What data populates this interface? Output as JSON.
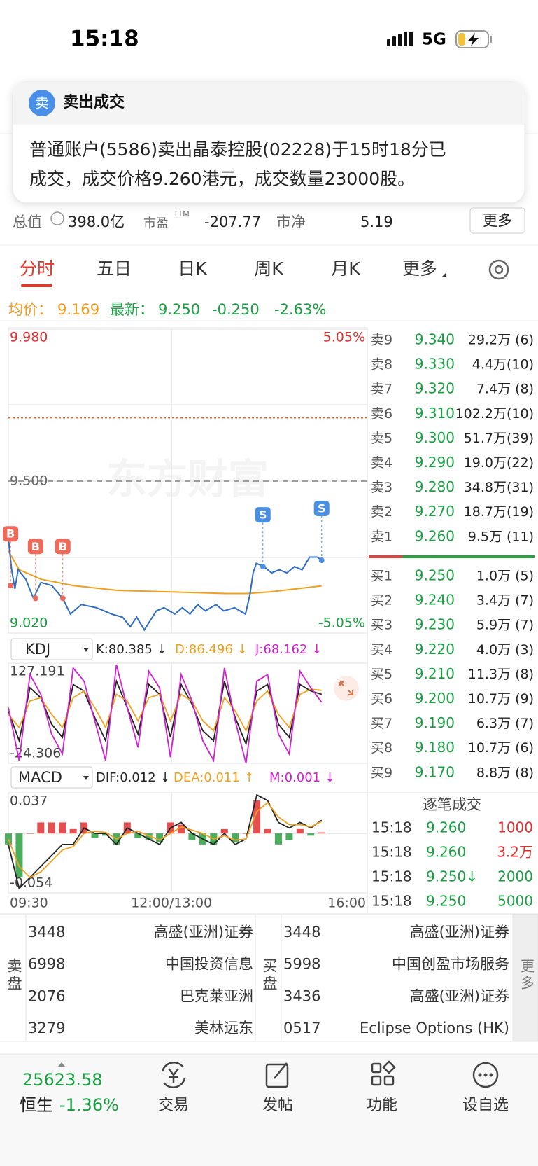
{
  "status_bar": {
    "time": "15:18",
    "network": "5G"
  },
  "notification": {
    "icon": "卖",
    "title": "卖出成交",
    "body": [
      "普通账户(5586)卖出晶泰控股(02228)于15时18分已",
      "成交，成交价格9.260港元，成交数量23000股。"
    ]
  },
  "stats": {
    "market_cap_label": "总值",
    "market_cap": "398.0亿",
    "pe_label": "市盈",
    "pe_suffix": "TTM",
    "pe": "-207.77",
    "pb_label": "市净",
    "pb": "5.19",
    "more": "更多"
  },
  "tabs": [
    "分时",
    "五日",
    "日K",
    "周K",
    "月K",
    "更多"
  ],
  "quote": {
    "avg_label": "均价：",
    "avg": "9.169",
    "last_label": "最新：",
    "last": "9.250",
    "change": "-0.250",
    "change_pct": "-2.63%"
  },
  "watermark": "东方财富",
  "intraday": {
    "ylim": [
      9.02,
      9.98
    ],
    "yticks": [
      {
        "value": 9.98,
        "label": "9.980"
      },
      {
        "value": 9.5,
        "label": "9.500"
      },
      {
        "value": 9.02,
        "label": "9.020"
      }
    ],
    "y2lim": [
      -5.05,
      5.05
    ],
    "y2ticks": [
      {
        "value": 5.05,
        "label": "5.05%"
      },
      {
        "value": -5.05,
        "label": "-5.05%"
      }
    ],
    "xlim": [
      0,
      330
    ],
    "xticks": [
      {
        "value": 0,
        "label": "09:30"
      },
      {
        "value": 150,
        "label": "12:00/13:00"
      },
      {
        "value": 330,
        "label": "16:00"
      }
    ],
    "prev_close": 9.5,
    "alert_line": 9.7,
    "price": {
      "color": "#2e6cc4",
      "x": [
        0,
        3,
        6,
        9,
        16,
        23,
        30,
        40,
        50,
        57,
        67,
        81,
        95,
        105,
        112,
        118,
        125,
        136,
        143,
        153,
        160,
        167,
        174,
        181,
        191,
        198,
        208,
        218,
        222,
        225,
        228,
        235,
        242,
        249,
        256,
        263,
        270,
        277,
        284,
        288
      ],
      "values": [
        9.32,
        9.22,
        9.16,
        9.22,
        9.19,
        9.13,
        9.18,
        9.17,
        9.13,
        9.08,
        9.11,
        9.1,
        9.08,
        9.07,
        9.04,
        9.07,
        9.03,
        9.09,
        9.1,
        9.08,
        9.1,
        9.08,
        9.11,
        9.09,
        9.11,
        9.09,
        9.1,
        9.08,
        9.14,
        9.21,
        9.24,
        9.23,
        9.21,
        9.22,
        9.21,
        9.23,
        9.22,
        9.26,
        9.26,
        9.25
      ]
    },
    "avg": {
      "color": "#f0a020",
      "x": [
        0,
        10,
        30,
        60,
        100,
        150,
        200,
        220,
        240,
        288
      ],
      "values": [
        9.28,
        9.22,
        9.19,
        9.17,
        9.155,
        9.15,
        9.145,
        9.145,
        9.15,
        9.169
      ]
    },
    "markers": [
      {
        "label": "B",
        "x": 2,
        "value": 9.17
      },
      {
        "label": "B",
        "x": 25,
        "value": 9.13
      },
      {
        "label": "B",
        "x": 50,
        "value": 9.13
      },
      {
        "label": "S",
        "x": 234,
        "value": 9.23
      },
      {
        "label": "S",
        "x": 288,
        "value": 9.25
      }
    ]
  },
  "kdj": {
    "name": "KDJ",
    "labels": [
      "K:80.385 ↓",
      "D:86.496 ↓",
      "J:68.162 ↓"
    ],
    "ylim": [
      -24.306,
      127.191
    ],
    "yticks": [
      {
        "value": 127.191,
        "label": "127.191"
      },
      {
        "value": -24.306,
        "label": "-24.306"
      }
    ],
    "series": [
      {
        "name": "K",
        "color": "#222222",
        "values": [
          55,
          10,
          90,
          75,
          35,
          15,
          95,
          85,
          45,
          10,
          100,
          60,
          20,
          95,
          80,
          15,
          95,
          65,
          25,
          10,
          100,
          45,
          5,
          85,
          95,
          35,
          15,
          95,
          85,
          80
        ]
      },
      {
        "name": "D",
        "color": "#f0a020",
        "values": [
          50,
          30,
          70,
          75,
          50,
          30,
          75,
          85,
          60,
          30,
          80,
          70,
          40,
          75,
          80,
          40,
          80,
          70,
          40,
          25,
          75,
          55,
          25,
          70,
          85,
          50,
          30,
          80,
          88,
          86
        ]
      },
      {
        "name": "J",
        "color": "#d020d0",
        "values": [
          60,
          -20,
          110,
          80,
          20,
          -10,
          120,
          100,
          40,
          -20,
          125,
          60,
          0,
          115,
          90,
          -15,
          110,
          70,
          10,
          -20,
          120,
          40,
          -24,
          100,
          110,
          20,
          -10,
          115,
          90,
          68
        ]
      }
    ]
  },
  "macd": {
    "name": "MACD",
    "labels": [
      "DIF:0.012 ↓",
      "DEA:0.011 ↑",
      "M:0.001 ↓"
    ],
    "ylim": [
      -0.054,
      0.037
    ],
    "yticks": [
      {
        "value": 0.037,
        "label": "0.037"
      },
      {
        "value": -0.054,
        "label": "-0.054"
      }
    ],
    "up_color": "#e03030",
    "down_color": "#2aa040",
    "bars": [
      -0.01,
      -0.04,
      0.0,
      0.01,
      0.01,
      0.01,
      0.004,
      0.01,
      -0.004,
      -0.002,
      -0.01,
      0.01,
      -0.004,
      -0.006,
      -0.008,
      0.01,
      0.008,
      -0.006,
      -0.01,
      -0.01,
      0.004,
      -0.008,
      0.0,
      0.03,
      0.004,
      -0.01,
      -0.006,
      0.004,
      -0.002,
      0.001
    ],
    "series": [
      {
        "name": "DIF",
        "color": "#222222",
        "values": [
          -0.01,
          -0.05,
          -0.04,
          -0.03,
          -0.02,
          -0.01,
          -0.01,
          0.005,
          0.0,
          0.0,
          -0.01,
          0.005,
          0.0,
          -0.005,
          -0.01,
          0.005,
          0.01,
          0.0,
          -0.005,
          -0.01,
          0.0,
          -0.01,
          -0.005,
          0.035,
          0.03,
          0.01,
          0.005,
          0.01,
          0.005,
          0.012
        ]
      },
      {
        "name": "DEA",
        "color": "#f0a020",
        "values": [
          -0.005,
          -0.03,
          -0.04,
          -0.035,
          -0.025,
          -0.015,
          -0.012,
          0.0,
          0.002,
          0.001,
          -0.005,
          0.0,
          0.002,
          -0.002,
          -0.006,
          0.0,
          0.006,
          0.003,
          0.0,
          -0.005,
          -0.002,
          -0.006,
          -0.005,
          0.02,
          0.028,
          0.015,
          0.008,
          0.008,
          0.006,
          0.011
        ]
      }
    ]
  },
  "order_book": {
    "asks": [
      [
        "卖9",
        "9.340",
        "29.2万 (6)"
      ],
      [
        "卖8",
        "9.330",
        "4.4万(10)"
      ],
      [
        "卖7",
        "9.320",
        "7.4万 (8)"
      ],
      [
        "卖6",
        "9.310",
        "102.2万(10)"
      ],
      [
        "卖5",
        "9.300",
        "51.7万(39)"
      ],
      [
        "卖4",
        "9.290",
        "19.0万(22)"
      ],
      [
        "卖3",
        "9.280",
        "34.8万(31)"
      ],
      [
        "卖2",
        "9.270",
        "18.7万(19)"
      ],
      [
        "卖1",
        "9.260",
        "9.5万 (11)"
      ]
    ],
    "bids": [
      [
        "买1",
        "9.250",
        "1.0万 (5)"
      ],
      [
        "买2",
        "9.240",
        "3.4万 (7)"
      ],
      [
        "买3",
        "9.230",
        "5.9万 (7)"
      ],
      [
        "买4",
        "9.220",
        "4.0万 (3)"
      ],
      [
        "买5",
        "9.210",
        "11.3万 (8)"
      ],
      [
        "买6",
        "9.200",
        "10.7万 (9)"
      ],
      [
        "买7",
        "9.190",
        "6.3万 (7)"
      ],
      [
        "买8",
        "9.180",
        "10.7万 (6)"
      ],
      [
        "买9",
        "9.170",
        "8.8万 (8)"
      ]
    ]
  },
  "trades": {
    "title": "逐笔成交",
    "rows": [
      {
        "time": "15:18",
        "price": "9.260",
        "volume": "1000",
        "color": "#e03030"
      },
      {
        "time": "15:18",
        "price": "9.260",
        "volume": "3.2万",
        "color": "#e03030"
      },
      {
        "time": "15:18",
        "price": "9.250↓",
        "volume": "2000",
        "color": "#1aa043"
      },
      {
        "time": "15:18",
        "price": "9.250",
        "volume": "5000",
        "color": "#1aa043"
      }
    ]
  },
  "brokers": {
    "sell_label": "卖盘",
    "buy_label": "买盘",
    "more": "更多",
    "sell": [
      [
        "3448",
        "高盛(亚洲)证券"
      ],
      [
        "6998",
        "中国投资信息"
      ],
      [
        "2076",
        "巴克莱亚洲"
      ],
      [
        "3279",
        "美林远东"
      ]
    ],
    "buy": [
      [
        "3448",
        "高盛(亚洲)证券"
      ],
      [
        "5998",
        "中国创盈市场服务"
      ],
      [
        "3436",
        "高盛(亚洲)证券"
      ],
      [
        "0517",
        "Eclipse Options (HK)"
      ]
    ]
  },
  "bottom_bar": {
    "index_value": "25623.58",
    "index_name": "恒生",
    "index_change": "-1.36%",
    "nav": [
      "交易",
      "发帖",
      "功能",
      "设自选"
    ]
  }
}
